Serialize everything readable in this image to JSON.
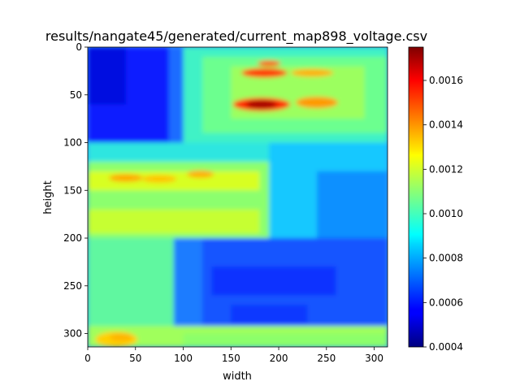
{
  "chart_data": {
    "type": "heatmap",
    "title": "results/nangate45/generated/current_map898_voltage.csv",
    "xlabel": "width",
    "ylabel": "height",
    "xlim": [
      0,
      314
    ],
    "ylim": [
      314,
      0
    ],
    "x_ticks": [
      "0",
      "50",
      "100",
      "150",
      "200",
      "250",
      "300"
    ],
    "y_ticks": [
      "0",
      "50",
      "100",
      "150",
      "200",
      "250",
      "300"
    ],
    "colormap": "jet",
    "colorbar": {
      "range": [
        0.0004,
        0.00175
      ],
      "ticks": [
        "0.0004",
        "0.0006",
        "0.0008",
        "0.0010",
        "0.0012",
        "0.0014",
        "0.0016"
      ]
    },
    "grid": false
  }
}
